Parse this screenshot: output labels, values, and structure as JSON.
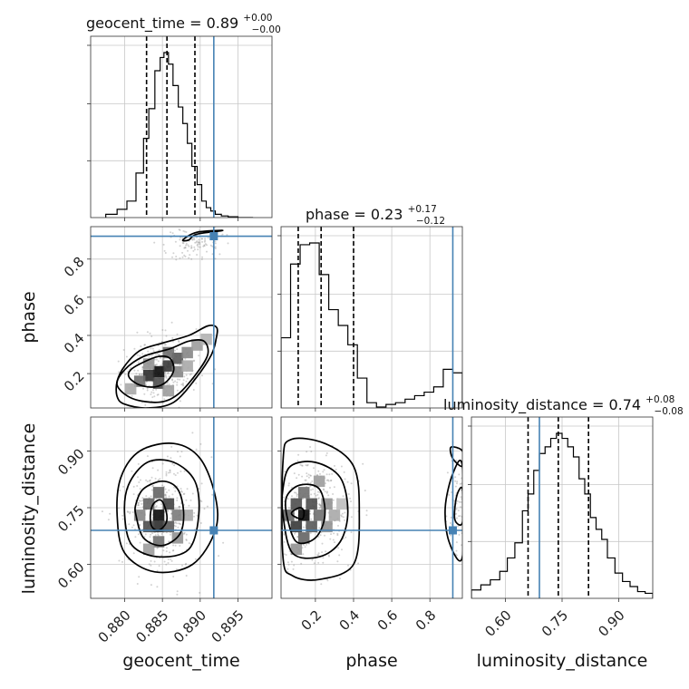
{
  "figure": {
    "type": "corner_plot",
    "parameters": [
      "geocent_time",
      "phase",
      "luminosity_distance"
    ],
    "colors": {
      "truth": "#4682b4",
      "hist": "#000000",
      "grid": "#c8c8c8",
      "points": "#7f7f7f"
    }
  },
  "chart_data": [
    {
      "type": "histogram",
      "panel": "geocent_time",
      "title": {
        "main": "geocent_time = 0.89",
        "plus": "+0.00",
        "minus": "−0.00"
      },
      "xlim": [
        0.8755,
        0.8995
      ],
      "ylim": [
        0,
        1.0
      ],
      "bin_edges": [
        0.8775,
        0.879,
        0.8803,
        0.8815,
        0.8825,
        0.8832,
        0.884,
        0.8847,
        0.8852,
        0.8858,
        0.8864,
        0.8871,
        0.8877,
        0.8883,
        0.8889,
        0.8896,
        0.8902,
        0.8908,
        0.8914,
        0.892,
        0.8928,
        0.8937,
        0.895,
        0.897
      ],
      "counts": [
        0.02,
        0.05,
        0.1,
        0.27,
        0.48,
        0.66,
        0.89,
        0.97,
        1.0,
        0.93,
        0.8,
        0.67,
        0.57,
        0.45,
        0.31,
        0.2,
        0.1,
        0.06,
        0.04,
        0.02,
        0.01,
        0.005,
        0.0
      ],
      "quantiles": [
        0.8829,
        0.8856,
        0.8893
      ],
      "truth": 0.8918
    },
    {
      "type": "scatter_contour",
      "panel": "phase vs geocent_time",
      "xlim": [
        0.8755,
        0.8995
      ],
      "ylim": [
        0.02,
        0.97
      ],
      "yticks": [
        0.2,
        0.4,
        0.6,
        0.8
      ],
      "ylabel": "phase",
      "truth": {
        "x": 0.8918,
        "y": 0.92
      },
      "contour_levels": [
        [
          [
            0.8806,
            0.18
          ],
          [
            0.882,
            0.14
          ],
          [
            0.884,
            0.13
          ],
          [
            0.8856,
            0.16
          ],
          [
            0.8865,
            0.22
          ],
          [
            0.886,
            0.28
          ],
          [
            0.8845,
            0.29
          ],
          [
            0.8825,
            0.26
          ],
          [
            0.8808,
            0.22
          ]
        ],
        [
          [
            0.879,
            0.14
          ],
          [
            0.881,
            0.07
          ],
          [
            0.8845,
            0.05
          ],
          [
            0.887,
            0.09
          ],
          [
            0.8895,
            0.2
          ],
          [
            0.891,
            0.3
          ],
          [
            0.8905,
            0.37
          ],
          [
            0.8885,
            0.37
          ],
          [
            0.886,
            0.33
          ],
          [
            0.8825,
            0.29
          ],
          [
            0.88,
            0.22
          ]
        ],
        [
          [
            0.879,
            0.08
          ],
          [
            0.88,
            0.04
          ],
          [
            0.883,
            0.02
          ],
          [
            0.8865,
            0.05
          ],
          [
            0.8895,
            0.18
          ],
          [
            0.8915,
            0.3
          ],
          [
            0.8921,
            0.38
          ],
          [
            0.8922,
            0.44
          ],
          [
            0.891,
            0.45
          ],
          [
            0.8885,
            0.4
          ],
          [
            0.885,
            0.36
          ],
          [
            0.882,
            0.32
          ],
          [
            0.88,
            0.24
          ],
          [
            0.879,
            0.16
          ]
        ],
        [
          [
            0.8877,
            0.9
          ],
          [
            0.8895,
            0.94
          ],
          [
            0.893,
            0.95
          ],
          [
            0.8895,
            0.93
          ],
          [
            0.8885,
            0.9
          ]
        ]
      ],
      "density_cells": [
        {
          "x": 0.8845,
          "y": 0.21,
          "v": 1.0
        },
        {
          "x": 0.8832,
          "y": 0.19,
          "v": 0.85
        },
        {
          "x": 0.8858,
          "y": 0.24,
          "v": 0.8
        },
        {
          "x": 0.8845,
          "y": 0.15,
          "v": 0.7
        },
        {
          "x": 0.887,
          "y": 0.28,
          "v": 0.65
        },
        {
          "x": 0.882,
          "y": 0.16,
          "v": 0.55
        },
        {
          "x": 0.8858,
          "y": 0.31,
          "v": 0.55
        },
        {
          "x": 0.8883,
          "y": 0.31,
          "v": 0.45
        },
        {
          "x": 0.887,
          "y": 0.21,
          "v": 0.45
        },
        {
          "x": 0.8896,
          "y": 0.35,
          "v": 0.35
        },
        {
          "x": 0.8832,
          "y": 0.25,
          "v": 0.4
        },
        {
          "x": 0.8808,
          "y": 0.12,
          "v": 0.3
        },
        {
          "x": 0.8883,
          "y": 0.24,
          "v": 0.3
        },
        {
          "x": 0.8908,
          "y": 0.38,
          "v": 0.25
        },
        {
          "x": 0.8858,
          "y": 0.11,
          "v": 0.35
        }
      ],
      "point_clouds": [
        {
          "cx": 0.885,
          "cy": 0.22,
          "sx": 0.0022,
          "sy": 0.085,
          "n": 320
        },
        {
          "cx": 0.8895,
          "cy": 0.88,
          "sx": 0.002,
          "sy": 0.045,
          "n": 110
        }
      ]
    },
    {
      "type": "histogram",
      "panel": "phase",
      "title": {
        "main": "phase = 0.23",
        "plus": "+0.17",
        "minus": "−0.12"
      },
      "xlim": [
        0.02,
        0.97
      ],
      "ylim": [
        0,
        1.0
      ],
      "bin_edges": [
        0.02,
        0.07,
        0.12,
        0.17,
        0.22,
        0.27,
        0.32,
        0.37,
        0.42,
        0.47,
        0.52,
        0.57,
        0.62,
        0.67,
        0.72,
        0.77,
        0.82,
        0.87,
        0.92,
        0.97
      ],
      "counts": [
        0.4,
        0.82,
        0.93,
        0.94,
        0.76,
        0.56,
        0.47,
        0.36,
        0.17,
        0.03,
        0.005,
        0.02,
        0.03,
        0.05,
        0.07,
        0.09,
        0.12,
        0.22,
        0.2
      ],
      "quantiles": [
        0.11,
        0.23,
        0.4
      ],
      "truth": 0.92
    },
    {
      "type": "scatter_contour",
      "panel": "luminosity_distance vs geocent_time",
      "xlim": [
        0.8755,
        0.8995
      ],
      "ylim": [
        0.51,
        0.99
      ],
      "xticks": [
        0.88,
        0.885,
        0.89,
        0.895
      ],
      "xtick_labels": [
        "0.880",
        "0.885",
        "0.890",
        "0.895"
      ],
      "yticks": [
        0.6,
        0.75,
        0.9
      ],
      "ytick_labels": [
        "0.60",
        "0.75",
        "0.90"
      ],
      "xlabel": "geocent_time",
      "ylabel": "luminosity_distance",
      "truth": {
        "x": 0.8918,
        "y": 0.69
      },
      "contour_levels": [
        [
          [
            0.8836,
            0.7
          ],
          [
            0.8845,
            0.69
          ],
          [
            0.8855,
            0.71
          ],
          [
            0.8855,
            0.74
          ],
          [
            0.8848,
            0.77
          ],
          [
            0.8838,
            0.76
          ],
          [
            0.8834,
            0.73
          ]
        ],
        [
          [
            0.8815,
            0.73
          ],
          [
            0.8825,
            0.67
          ],
          [
            0.885,
            0.65
          ],
          [
            0.8873,
            0.68
          ],
          [
            0.8878,
            0.74
          ],
          [
            0.887,
            0.8
          ],
          [
            0.885,
            0.82
          ],
          [
            0.8825,
            0.8
          ],
          [
            0.8815,
            0.76
          ]
        ],
        [
          [
            0.88,
            0.73
          ],
          [
            0.881,
            0.65
          ],
          [
            0.8845,
            0.62
          ],
          [
            0.8885,
            0.64
          ],
          [
            0.8898,
            0.73
          ],
          [
            0.8893,
            0.82
          ],
          [
            0.8865,
            0.87
          ],
          [
            0.883,
            0.87
          ],
          [
            0.8805,
            0.81
          ]
        ],
        [
          [
            0.879,
            0.73
          ],
          [
            0.88,
            0.63
          ],
          [
            0.884,
            0.58
          ],
          [
            0.889,
            0.6
          ],
          [
            0.892,
            0.69
          ],
          [
            0.892,
            0.78
          ],
          [
            0.89,
            0.88
          ],
          [
            0.8865,
            0.92
          ],
          [
            0.882,
            0.9
          ],
          [
            0.8795,
            0.83
          ]
        ]
      ],
      "density_cells": [
        {
          "x": 0.8845,
          "y": 0.73,
          "v": 1.0
        },
        {
          "x": 0.8845,
          "y": 0.7,
          "v": 0.85
        },
        {
          "x": 0.8858,
          "y": 0.76,
          "v": 0.75
        },
        {
          "x": 0.8832,
          "y": 0.7,
          "v": 0.7
        },
        {
          "x": 0.8845,
          "y": 0.79,
          "v": 0.6
        },
        {
          "x": 0.8858,
          "y": 0.7,
          "v": 0.65
        },
        {
          "x": 0.8832,
          "y": 0.76,
          "v": 0.6
        },
        {
          "x": 0.887,
          "y": 0.73,
          "v": 0.5
        },
        {
          "x": 0.882,
          "y": 0.73,
          "v": 0.45
        },
        {
          "x": 0.8845,
          "y": 0.66,
          "v": 0.55
        },
        {
          "x": 0.887,
          "y": 0.67,
          "v": 0.4
        },
        {
          "x": 0.8883,
          "y": 0.73,
          "v": 0.3
        },
        {
          "x": 0.8832,
          "y": 0.64,
          "v": 0.35
        }
      ],
      "point_clouds": [
        {
          "cx": 0.885,
          "cy": 0.735,
          "sx": 0.0025,
          "sy": 0.075,
          "n": 380
        }
      ]
    },
    {
      "type": "scatter_contour",
      "panel": "luminosity_distance vs phase",
      "xlim": [
        0.02,
        0.97
      ],
      "ylim": [
        0.51,
        0.99
      ],
      "xticks": [
        0.2,
        0.4,
        0.6,
        0.8
      ],
      "xtick_labels": [
        "0.2",
        "0.4",
        "0.6",
        "0.8"
      ],
      "xlabel": "phase",
      "truth": {
        "x": 0.92,
        "y": 0.69
      },
      "contour_levels": [
        [
          [
            0.08,
            0.73
          ],
          [
            0.13,
            0.72
          ],
          [
            0.14,
            0.74
          ],
          [
            0.12,
            0.75
          ],
          [
            0.08,
            0.74
          ]
        ],
        [
          [
            0.05,
            0.73
          ],
          [
            0.1,
            0.66
          ],
          [
            0.2,
            0.67
          ],
          [
            0.25,
            0.73
          ],
          [
            0.22,
            0.8
          ],
          [
            0.12,
            0.81
          ],
          [
            0.05,
            0.78
          ]
        ],
        [
          [
            0.03,
            0.73
          ],
          [
            0.08,
            0.63
          ],
          [
            0.22,
            0.62
          ],
          [
            0.33,
            0.66
          ],
          [
            0.37,
            0.74
          ],
          [
            0.33,
            0.83
          ],
          [
            0.2,
            0.87
          ],
          [
            0.07,
            0.86
          ],
          [
            0.03,
            0.8
          ]
        ],
        [
          [
            0.03,
            0.62
          ],
          [
            0.08,
            0.57
          ],
          [
            0.22,
            0.56
          ],
          [
            0.4,
            0.6
          ],
          [
            0.43,
            0.74
          ],
          [
            0.4,
            0.86
          ],
          [
            0.25,
            0.92
          ],
          [
            0.07,
            0.93
          ],
          [
            0.03,
            0.87
          ]
        ],
        [
          [
            0.97,
            0.8
          ],
          [
            0.94,
            0.78
          ],
          [
            0.93,
            0.72
          ],
          [
            0.97,
            0.71
          ]
        ],
        [
          [
            0.97,
            0.86
          ],
          [
            0.92,
            0.84
          ],
          [
            0.88,
            0.75
          ],
          [
            0.9,
            0.66
          ],
          [
            0.97,
            0.62
          ]
        ],
        [
          [
            0.97,
            0.9
          ],
          [
            0.91,
            0.91
          ],
          [
            0.92,
            0.88
          ],
          [
            0.97,
            0.86
          ]
        ]
      ],
      "density_cells": [
        {
          "x": 0.14,
          "y": 0.73,
          "v": 1.0
        },
        {
          "x": 0.1,
          "y": 0.7,
          "v": 0.8
        },
        {
          "x": 0.18,
          "y": 0.76,
          "v": 0.7
        },
        {
          "x": 0.1,
          "y": 0.76,
          "v": 0.7
        },
        {
          "x": 0.18,
          "y": 0.7,
          "v": 0.65
        },
        {
          "x": 0.22,
          "y": 0.73,
          "v": 0.55
        },
        {
          "x": 0.06,
          "y": 0.73,
          "v": 0.6
        },
        {
          "x": 0.14,
          "y": 0.79,
          "v": 0.55
        },
        {
          "x": 0.14,
          "y": 0.67,
          "v": 0.6
        },
        {
          "x": 0.26,
          "y": 0.76,
          "v": 0.4
        },
        {
          "x": 0.26,
          "y": 0.7,
          "v": 0.4
        },
        {
          "x": 0.3,
          "y": 0.73,
          "v": 0.3
        },
        {
          "x": 0.22,
          "y": 0.82,
          "v": 0.35
        },
        {
          "x": 0.1,
          "y": 0.64,
          "v": 0.4
        },
        {
          "x": 0.34,
          "y": 0.76,
          "v": 0.2
        }
      ],
      "point_clouds": [
        {
          "cx": 0.19,
          "cy": 0.735,
          "sx": 0.11,
          "sy": 0.075,
          "n": 380
        },
        {
          "cx": 0.94,
          "cy": 0.75,
          "sx": 0.02,
          "sy": 0.07,
          "n": 70
        }
      ]
    },
    {
      "type": "histogram",
      "panel": "luminosity_distance",
      "title": {
        "main": "luminosity_distance = 0.74",
        "plus": "+0.08",
        "minus": "−0.08"
      },
      "xlim": [
        0.51,
        0.99
      ],
      "ylim": [
        0,
        1.0
      ],
      "xticks": [
        0.6,
        0.75,
        0.9
      ],
      "xtick_labels": [
        "0.60",
        "0.75",
        "0.90"
      ],
      "xlabel": "luminosity_distance",
      "bin_edges": [
        0.51,
        0.535,
        0.56,
        0.585,
        0.605,
        0.625,
        0.645,
        0.66,
        0.675,
        0.69,
        0.705,
        0.72,
        0.735,
        0.75,
        0.765,
        0.78,
        0.795,
        0.81,
        0.825,
        0.84,
        0.855,
        0.87,
        0.89,
        0.91,
        0.93,
        0.95,
        0.97,
        0.99
      ],
      "counts": [
        0.05,
        0.08,
        0.11,
        0.16,
        0.24,
        0.33,
        0.52,
        0.62,
        0.76,
        0.86,
        0.9,
        0.95,
        0.98,
        0.95,
        0.9,
        0.84,
        0.71,
        0.62,
        0.48,
        0.41,
        0.35,
        0.24,
        0.15,
        0.1,
        0.07,
        0.04,
        0.03
      ],
      "quantiles": [
        0.66,
        0.74,
        0.82
      ],
      "truth": 0.69
    }
  ]
}
